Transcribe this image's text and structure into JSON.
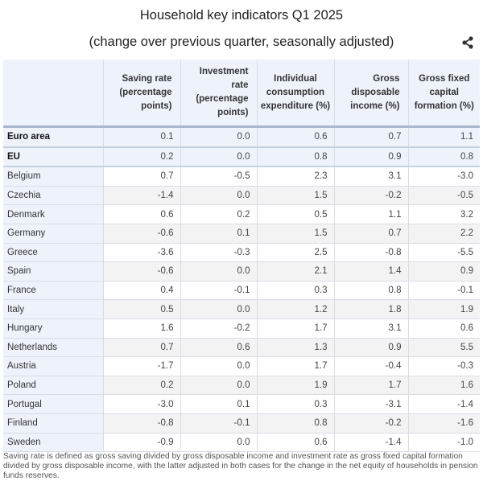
{
  "header": {
    "title": "Household key indicators Q1 2025",
    "subtitle": "(change over previous quarter, seasonally adjusted)",
    "share_icon": "share-icon"
  },
  "table": {
    "columns": [
      "",
      "Saving rate (percentage points)",
      "Investment rate (percentage points)",
      "Individual consumption expenditure (%)",
      "Gross disposable income (%)",
      "Gross fixed capital formation (%)"
    ],
    "aggregate_rows": [
      {
        "name": "Euro area",
        "values": [
          "0.1",
          "0.0",
          "0.6",
          "0.7",
          "1.1"
        ]
      },
      {
        "name": "EU",
        "values": [
          "0.2",
          "0.0",
          "0.8",
          "0.9",
          "0.8"
        ]
      }
    ],
    "rows": [
      {
        "name": "Belgium",
        "values": [
          "0.7",
          "-0.5",
          "2.3",
          "3.1",
          "-3.0"
        ]
      },
      {
        "name": "Czechia",
        "values": [
          "-1.4",
          "0.0",
          "1.5",
          "-0.2",
          "-0.5"
        ]
      },
      {
        "name": "Denmark",
        "values": [
          "0.6",
          "0.2",
          "0.5",
          "1.1",
          "3.2"
        ]
      },
      {
        "name": "Germany",
        "values": [
          "-0.6",
          "0.1",
          "1.5",
          "0.7",
          "2.2"
        ]
      },
      {
        "name": "Greece",
        "values": [
          "-3.6",
          "-0.3",
          "2.5",
          "-0.8",
          "-5.5"
        ]
      },
      {
        "name": "Spain",
        "values": [
          "-0.6",
          "0.0",
          "2.1",
          "1.4",
          "0.9"
        ]
      },
      {
        "name": "France",
        "values": [
          "0.4",
          "-0.1",
          "0.3",
          "0.8",
          "-0.1"
        ]
      },
      {
        "name": "Italy",
        "values": [
          "0.5",
          "0.0",
          "1.2",
          "1.8",
          "1.9"
        ]
      },
      {
        "name": "Hungary",
        "values": [
          "1.6",
          "-0.2",
          "1.7",
          "3.1",
          "0.6"
        ]
      },
      {
        "name": "Netherlands",
        "values": [
          "0.7",
          "0.6",
          "1.3",
          "0.9",
          "5.5"
        ]
      },
      {
        "name": "Austria",
        "values": [
          "-1.7",
          "0.0",
          "1.7",
          "-0.4",
          "-0.3"
        ]
      },
      {
        "name": "Poland",
        "values": [
          "0.2",
          "0.0",
          "1.9",
          "1.7",
          "1.6"
        ]
      },
      {
        "name": "Portugal",
        "values": [
          "-3.0",
          "0.1",
          "0.3",
          "-3.1",
          "-1.4"
        ]
      },
      {
        "name": "Finland",
        "values": [
          "-0.8",
          "-0.1",
          "0.8",
          "-0.2",
          "-1.6"
        ]
      },
      {
        "name": "Sweden",
        "values": [
          "-0.9",
          "0.0",
          "0.6",
          "-1.4",
          "-1.0"
        ]
      }
    ]
  },
  "footnote": "Saving rate is defined as gross saving divided by gross disposable income and investment rate as gross fixed capital formation divided by gross disposable income, with the latter adjusted in both cases for the change in the net equity of households in pension funds reserves.",
  "colors": {
    "header_bg": "#eef3fb",
    "row_alt_bg": "#f3f3f3",
    "header_rule": "#a9b8cc"
  }
}
